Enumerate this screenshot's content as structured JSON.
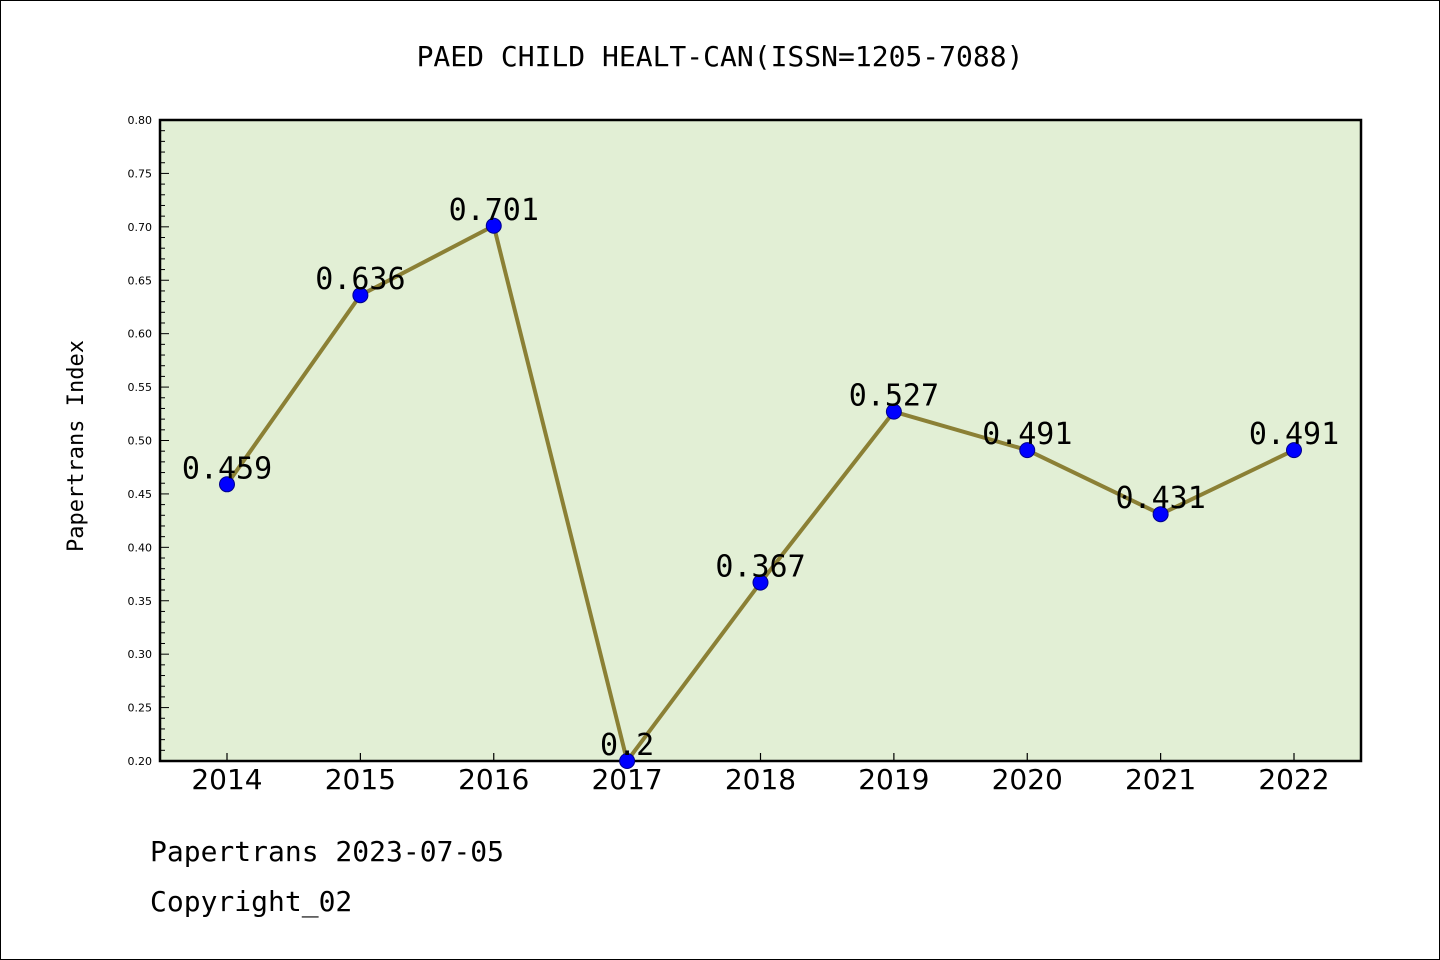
{
  "chart_data": {
    "type": "line",
    "title": "PAED CHILD HEALT-CAN(ISSN=1205-7088)",
    "xlabel": "",
    "ylabel": "Papertrans Index",
    "categories": [
      "2014",
      "2015",
      "2016",
      "2017",
      "2018",
      "2019",
      "2020",
      "2021",
      "2022"
    ],
    "values": [
      0.459,
      0.636,
      0.701,
      0.2,
      0.367,
      0.527,
      0.491,
      0.431,
      0.491
    ],
    "data_labels": [
      "0.459",
      "0.636",
      "0.701",
      "0.2",
      "0.367",
      "0.527",
      "0.491",
      "0.431",
      "0.491"
    ],
    "ylim": [
      0.2,
      0.8
    ],
    "yticks": [
      "0.20",
      "0.25",
      "0.30",
      "0.35",
      "0.40",
      "0.45",
      "0.50",
      "0.55",
      "0.60",
      "0.65",
      "0.70",
      "0.75",
      "0.80"
    ],
    "grid": false,
    "colors": {
      "plot_background": "#e2efd5",
      "line": "#8b8035",
      "marker": "#0000ff",
      "marker_edge": "#00008b"
    }
  },
  "footer": {
    "line1": "Papertrans 2023-07-05",
    "line2": "Copyright_02"
  }
}
